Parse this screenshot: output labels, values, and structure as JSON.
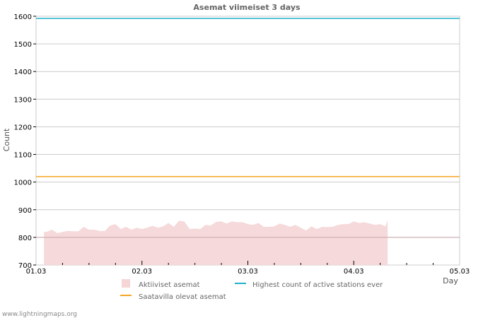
{
  "chart_data": {
    "type": "area",
    "title": "Asemat viimeiset 3 days",
    "xlabel": "Day",
    "ylabel": "Count",
    "ylim": [
      700,
      1600
    ],
    "xlim": [
      0,
      4
    ],
    "yticks": [
      700,
      800,
      900,
      1000,
      1100,
      1200,
      1300,
      1400,
      1500,
      1600
    ],
    "xticks": [
      {
        "v": 0,
        "label": "01.03"
      },
      {
        "v": 1,
        "label": "02.03"
      },
      {
        "v": 2,
        "label": "03.03"
      },
      {
        "v": 3,
        "label": "04.03"
      },
      {
        "v": 4,
        "label": "05.03"
      }
    ],
    "grid": true,
    "series": [
      {
        "name": "Aktiiviset asemat",
        "kind": "area",
        "color": "#f5d5d6",
        "x": [
          0.075,
          0.1,
          0.15,
          0.2,
          0.25,
          0.3,
          0.35,
          0.4,
          0.45,
          0.5,
          0.55,
          0.6,
          0.65,
          0.7,
          0.75,
          0.8,
          0.85,
          0.9,
          0.95,
          1.0,
          1.05,
          1.1,
          1.15,
          1.2,
          1.25,
          1.3,
          1.35,
          1.4,
          1.45,
          1.5,
          1.55,
          1.6,
          1.65,
          1.7,
          1.75,
          1.8,
          1.85,
          1.9,
          1.95,
          2.0,
          2.05,
          2.1,
          2.15,
          2.2,
          2.25,
          2.3,
          2.35,
          2.4,
          2.45,
          2.5,
          2.55,
          2.6,
          2.65,
          2.7,
          2.75,
          2.8,
          2.85,
          2.9,
          2.95,
          3.0,
          3.05,
          3.1,
          3.15,
          3.2,
          3.25,
          3.3,
          3.32
        ],
        "values": [
          820,
          820,
          828,
          815,
          820,
          823,
          822,
          822,
          838,
          828,
          828,
          823,
          823,
          843,
          848,
          830,
          838,
          828,
          835,
          830,
          835,
          842,
          835,
          840,
          852,
          838,
          860,
          858,
          830,
          832,
          830,
          845,
          843,
          856,
          858,
          850,
          858,
          855,
          855,
          848,
          845,
          852,
          838,
          838,
          840,
          850,
          845,
          838,
          845,
          835,
          825,
          840,
          830,
          838,
          837,
          838,
          845,
          848,
          848,
          858,
          852,
          855,
          850,
          845,
          848,
          840,
          862
        ]
      },
      {
        "name": "Highest count of active stations ever",
        "kind": "line",
        "color": "#1fb0cc",
        "value": 1592
      },
      {
        "name": "Saatavilla olevat asemat",
        "kind": "line",
        "color": "#f5a623",
        "value": 1020
      }
    ],
    "legend_position": "bottom"
  },
  "footer": "www.lightningmaps.org"
}
